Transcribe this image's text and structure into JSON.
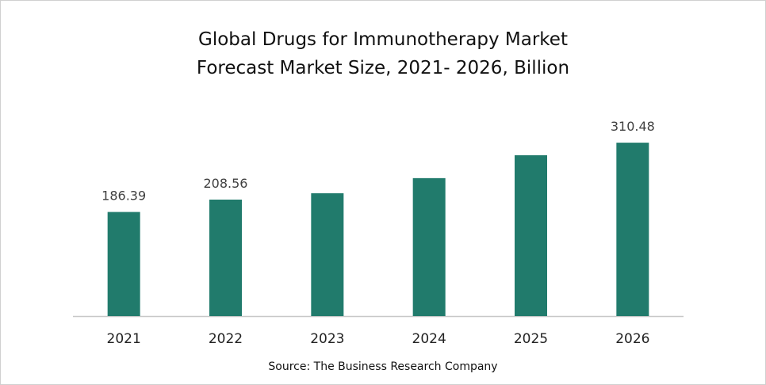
{
  "chart_data": {
    "type": "bar",
    "title": "Global Drugs for Immunotherapy Market",
    "subtitle": "Forecast Market Size, 2021- 2026, Billion",
    "categories": [
      "2021",
      "2022",
      "2023",
      "2024",
      "2025",
      "2026"
    ],
    "values": [
      186.39,
      208.56,
      220,
      247,
      288,
      310.48
    ],
    "data_labels": [
      "186.39",
      "208.56",
      "",
      "",
      "",
      "310.48"
    ],
    "xlabel": "",
    "ylabel": "",
    "ylim": [
      0,
      320
    ],
    "grid": false,
    "legend": "none",
    "bar_color": "#217B6C",
    "source": "Source: The Business Research Company"
  }
}
